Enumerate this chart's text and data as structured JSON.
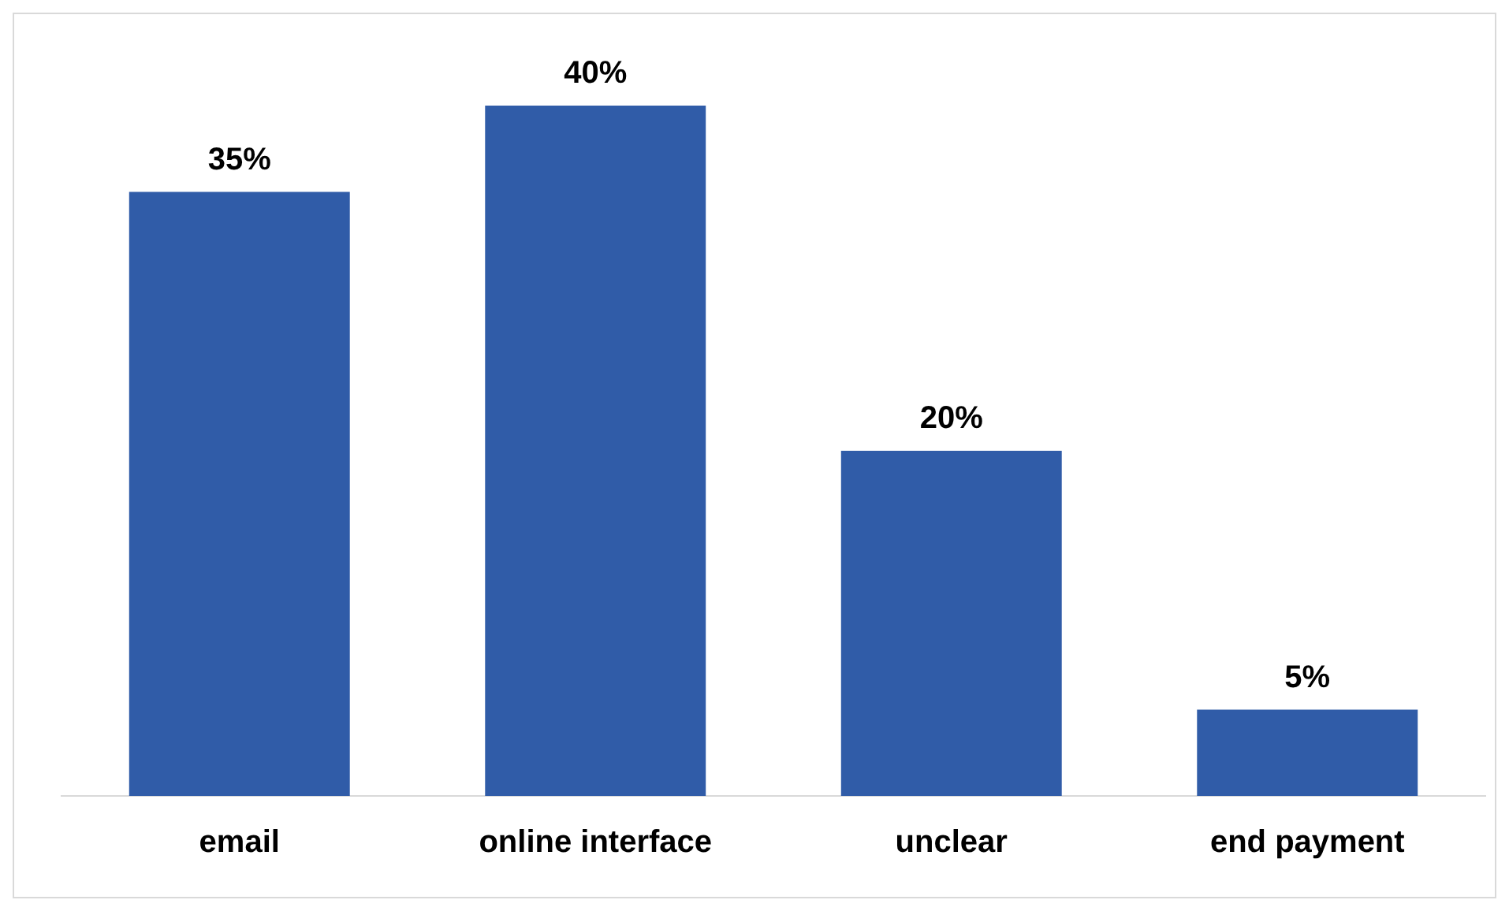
{
  "chart_data": {
    "type": "bar",
    "categories": [
      "email",
      "online interface",
      "unclear",
      "end payment"
    ],
    "values": [
      35,
      40,
      20,
      5
    ],
    "color": "#305ca8",
    "value_labels": [
      "35%",
      "40%",
      "20%",
      "5%"
    ],
    "grid": false,
    "legend": false
  }
}
